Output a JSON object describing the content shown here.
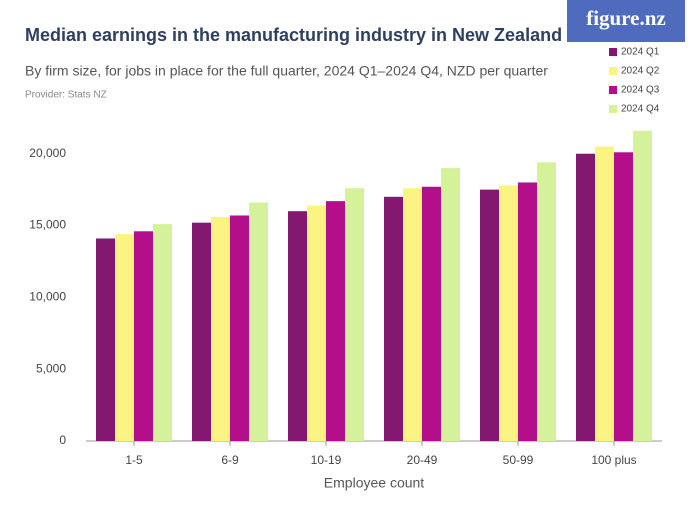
{
  "logo": "figure.nz",
  "provider": "Provider: Stats NZ",
  "chart_data": {
    "type": "bar",
    "title": "Median earnings in the manufacturing industry in New Zealand",
    "subtitle": "By firm size, for jobs in place for the full quarter, 2024 Q1–2024 Q4, NZD per quarter",
    "x_label": "Employee count",
    "categories": [
      "1-5",
      "6-9",
      "10-19",
      "20-49",
      "50-99",
      "100 plus"
    ],
    "series": [
      {
        "name": "2024 Q1",
        "color": "#84176f",
        "values": [
          14100,
          15200,
          16000,
          17000,
          17500,
          20000
        ]
      },
      {
        "name": "2024 Q2",
        "color": "#fbf483",
        "values": [
          14400,
          15600,
          16400,
          17600,
          17800,
          20500
        ]
      },
      {
        "name": "2024 Q3",
        "color": "#b40f8a",
        "values": [
          14600,
          15700,
          16700,
          17700,
          18000,
          20100
        ]
      },
      {
        "name": "2024 Q4",
        "color": "#d4f29a",
        "values": [
          15100,
          16600,
          17600,
          19000,
          19400,
          21600
        ]
      }
    ],
    "ylim": [
      0,
      22000
    ],
    "yticks": [
      0,
      {
        "value": 5000,
        "label": "5,000"
      },
      {
        "value": 10000,
        "label": "10,000"
      },
      {
        "value": 15000,
        "label": "15,000"
      },
      {
        "value": 20000,
        "label": "20,000"
      }
    ],
    "grid": false,
    "legend": "top-right"
  }
}
